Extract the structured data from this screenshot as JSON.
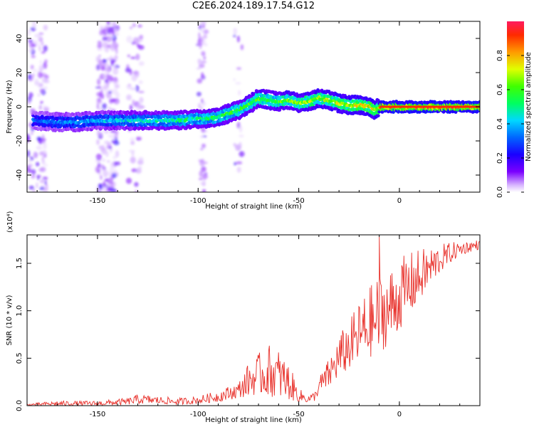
{
  "title": "C2E6.2024.189.17.54.G12",
  "chart_data": [
    {
      "type": "heatmap",
      "xlabel": "Height of straight line (km)",
      "ylabel": "Frequency (Hz)",
      "xlim": [
        -185,
        40
      ],
      "ylim": [
        -50,
        50
      ],
      "xticks": [
        -150,
        -100,
        -50,
        0
      ],
      "yticks": [
        -40,
        -20,
        0,
        20,
        40
      ],
      "colorbar": {
        "label": "Normalized spectral amplitude",
        "range": [
          0.0,
          1.0
        ],
        "ticks": [
          "0.0",
          "0.2",
          "0.4",
          "0.6",
          "0.8"
        ]
      },
      "ridge": {
        "x": [
          -182,
          -170,
          -160,
          -150,
          -142,
          -130,
          -120,
          -110,
          -100,
          -95,
          -90,
          -85,
          -80,
          -75,
          -70,
          -65,
          -60,
          -55,
          -50,
          -45,
          -40,
          -35,
          -30,
          -25,
          -20,
          -15,
          -12,
          -10,
          -5,
          0,
          10,
          20,
          30,
          40
        ],
        "y": [
          -8,
          -9,
          -9,
          -8,
          -8,
          -8,
          -8,
          -8,
          -7,
          -7,
          -6,
          -4,
          -2,
          1,
          5,
          4,
          3,
          4,
          2,
          3,
          5,
          4,
          2,
          1,
          1,
          0,
          -2,
          0,
          0,
          0,
          0,
          0,
          0,
          0
        ]
      }
    },
    {
      "type": "line",
      "xlabel": "Height of straight line (km)",
      "ylabel": "SNR (10 * v/v)",
      "y_multiplier": "(x10⁴)",
      "xlim": [
        -185,
        40
      ],
      "ylim": [
        0,
        1.8
      ],
      "xticks": [
        -150,
        -100,
        -50,
        0
      ],
      "yticks": [
        0.0,
        0.5,
        1.0,
        1.5
      ],
      "series": [
        {
          "color": "#e8302a",
          "envelope": {
            "x": [
              -185,
              -170,
              -150,
              -135,
              -130,
              -120,
              -110,
              -100,
              -90,
              -80,
              -75,
              -70,
              -65,
              -60,
              -55,
              -50,
              -45,
              -42,
              -40,
              -35,
              -30,
              -25,
              -20,
              -15,
              -10,
              -5,
              0,
              5,
              10,
              15,
              20,
              25,
              30,
              35,
              40
            ],
            "low": [
              0.0,
              0.0,
              0.0,
              0.01,
              0.02,
              0.02,
              0.01,
              0.02,
              0.04,
              0.08,
              0.1,
              0.12,
              0.1,
              0.08,
              0.06,
              0.04,
              0.03,
              0.05,
              0.12,
              0.18,
              0.3,
              0.38,
              0.45,
              0.5,
              0.55,
              0.65,
              0.8,
              0.95,
              1.1,
              1.25,
              1.4,
              1.5,
              1.58,
              1.62,
              1.65
            ],
            "high": [
              0.02,
              0.05,
              0.05,
              0.08,
              0.12,
              0.1,
              0.08,
              0.1,
              0.16,
              0.25,
              0.45,
              0.55,
              0.65,
              0.6,
              0.45,
              0.18,
              0.12,
              0.15,
              0.3,
              0.5,
              0.75,
              0.9,
              1.1,
              1.25,
              1.4,
              1.45,
              1.55,
              1.62,
              1.65,
              1.68,
              1.7,
              1.72,
              1.73,
              1.74,
              1.75
            ]
          },
          "peak": {
            "x": -10,
            "y": 1.78
          }
        }
      ]
    }
  ]
}
